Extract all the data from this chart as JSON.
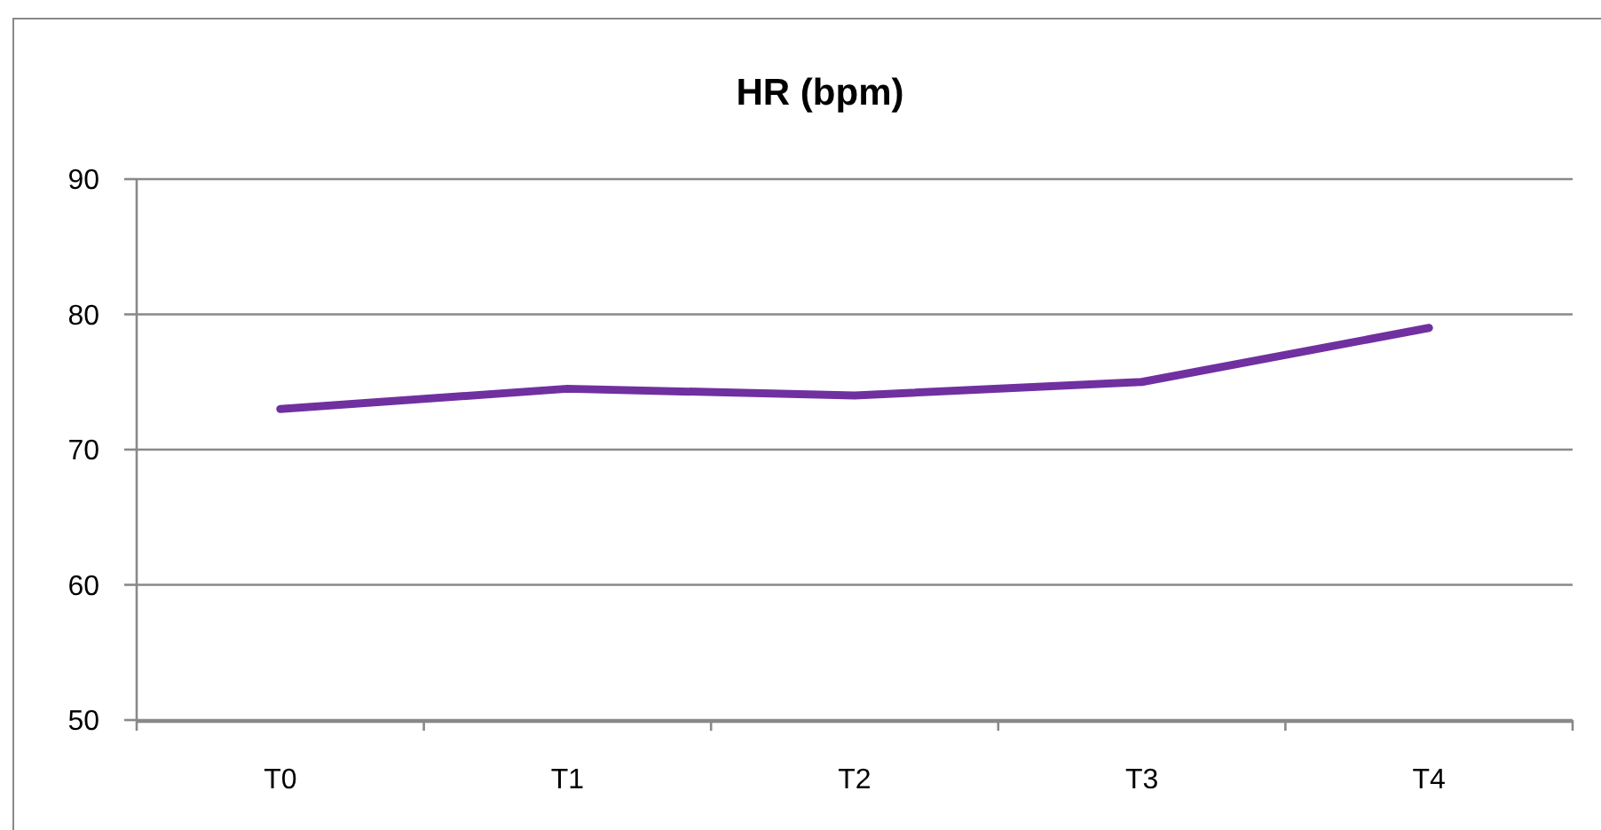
{
  "chart_data": {
    "type": "line",
    "title": "HR (bpm)",
    "categories": [
      "T0",
      "T1",
      "T2",
      "T3",
      "T4"
    ],
    "series": [
      {
        "color": "#7030a0",
        "values": [
          73,
          74.5,
          74,
          75,
          79
        ]
      }
    ],
    "ylim": [
      50,
      90
    ],
    "yticks": [
      50,
      60,
      70,
      80,
      90
    ],
    "grid": "y",
    "line_style": "solid"
  }
}
